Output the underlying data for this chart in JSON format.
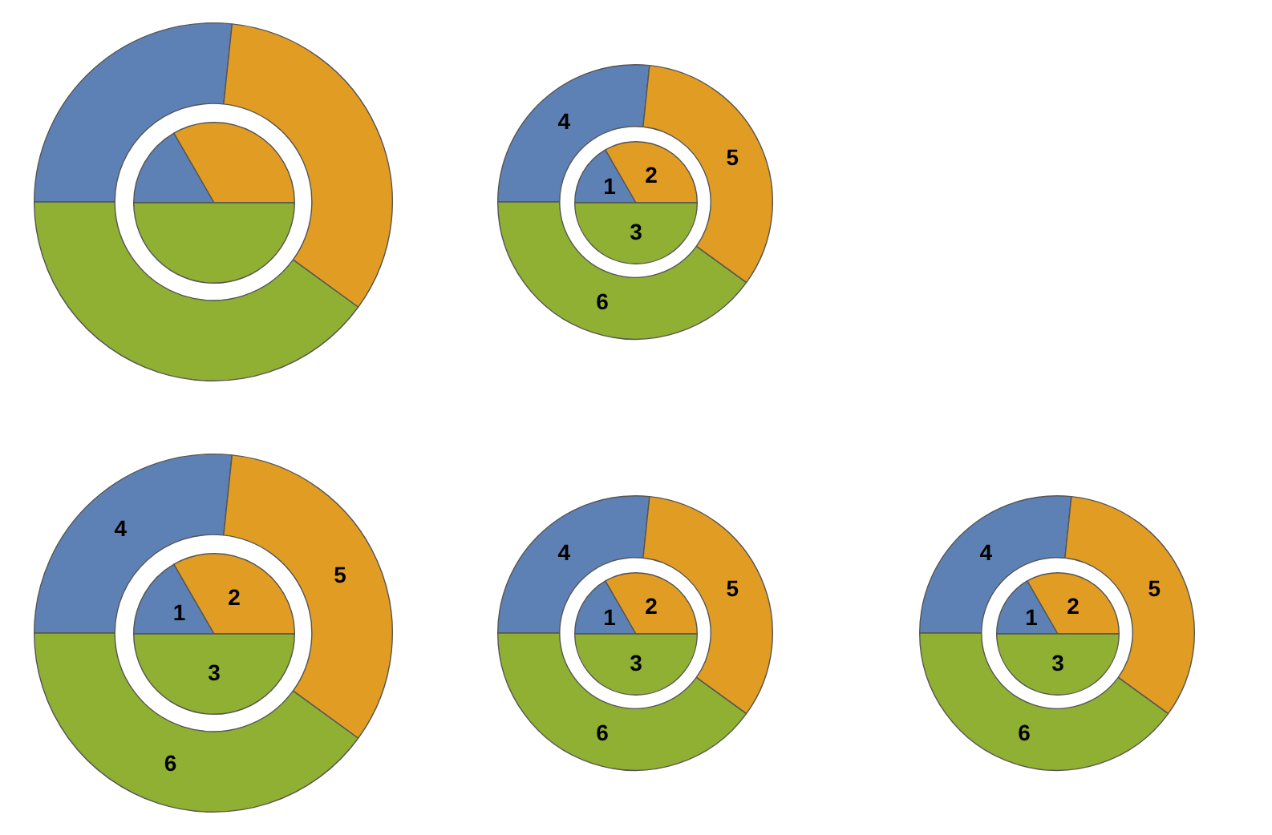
{
  "chart_data": [
    {
      "type": "donut",
      "categories": [
        null,
        null,
        null
      ],
      "colors": [
        "#5e81b5",
        "#e19c24",
        "#8fb032"
      ],
      "series": [
        {
          "values": [
            16.67,
            33.33,
            50
          ]
        },
        {
          "values": [
            26.67,
            33.33,
            40
          ]
        }
      ],
      "data_labels": false
    },
    {
      "type": "donut",
      "categories": [
        null,
        null,
        null
      ],
      "colors": [
        "#5e81b5",
        "#e19c24",
        "#8fb032"
      ],
      "series": [
        {
          "values": [
            1,
            2,
            3
          ]
        },
        {
          "values": [
            4,
            5,
            6
          ]
        }
      ],
      "data_labels": true
    },
    {
      "type": "donut",
      "categories": [
        null,
        null,
        null
      ],
      "colors": [
        "#5e81b5",
        "#e19c24",
        "#8fb032"
      ],
      "series": [
        {
          "values": [
            1,
            2,
            3
          ]
        },
        {
          "values": [
            4,
            5,
            6
          ]
        }
      ],
      "data_labels": true
    },
    {
      "type": "donut",
      "categories": [
        null,
        null,
        null
      ],
      "colors": [
        "#5e81b5",
        "#e19c24",
        "#8fb032"
      ],
      "series": [
        {
          "values": [
            1,
            2,
            3
          ]
        },
        {
          "values": [
            4,
            5,
            6
          ]
        }
      ],
      "data_labels": true
    },
    {
      "type": "donut",
      "categories": [
        null,
        null,
        null
      ],
      "colors": [
        "#5e81b5",
        "#e19c24",
        "#8fb032"
      ],
      "series": [
        {
          "values": [
            1,
            2,
            3
          ]
        },
        {
          "values": [
            4,
            5,
            6
          ]
        }
      ],
      "data_labels": true
    }
  ]
}
